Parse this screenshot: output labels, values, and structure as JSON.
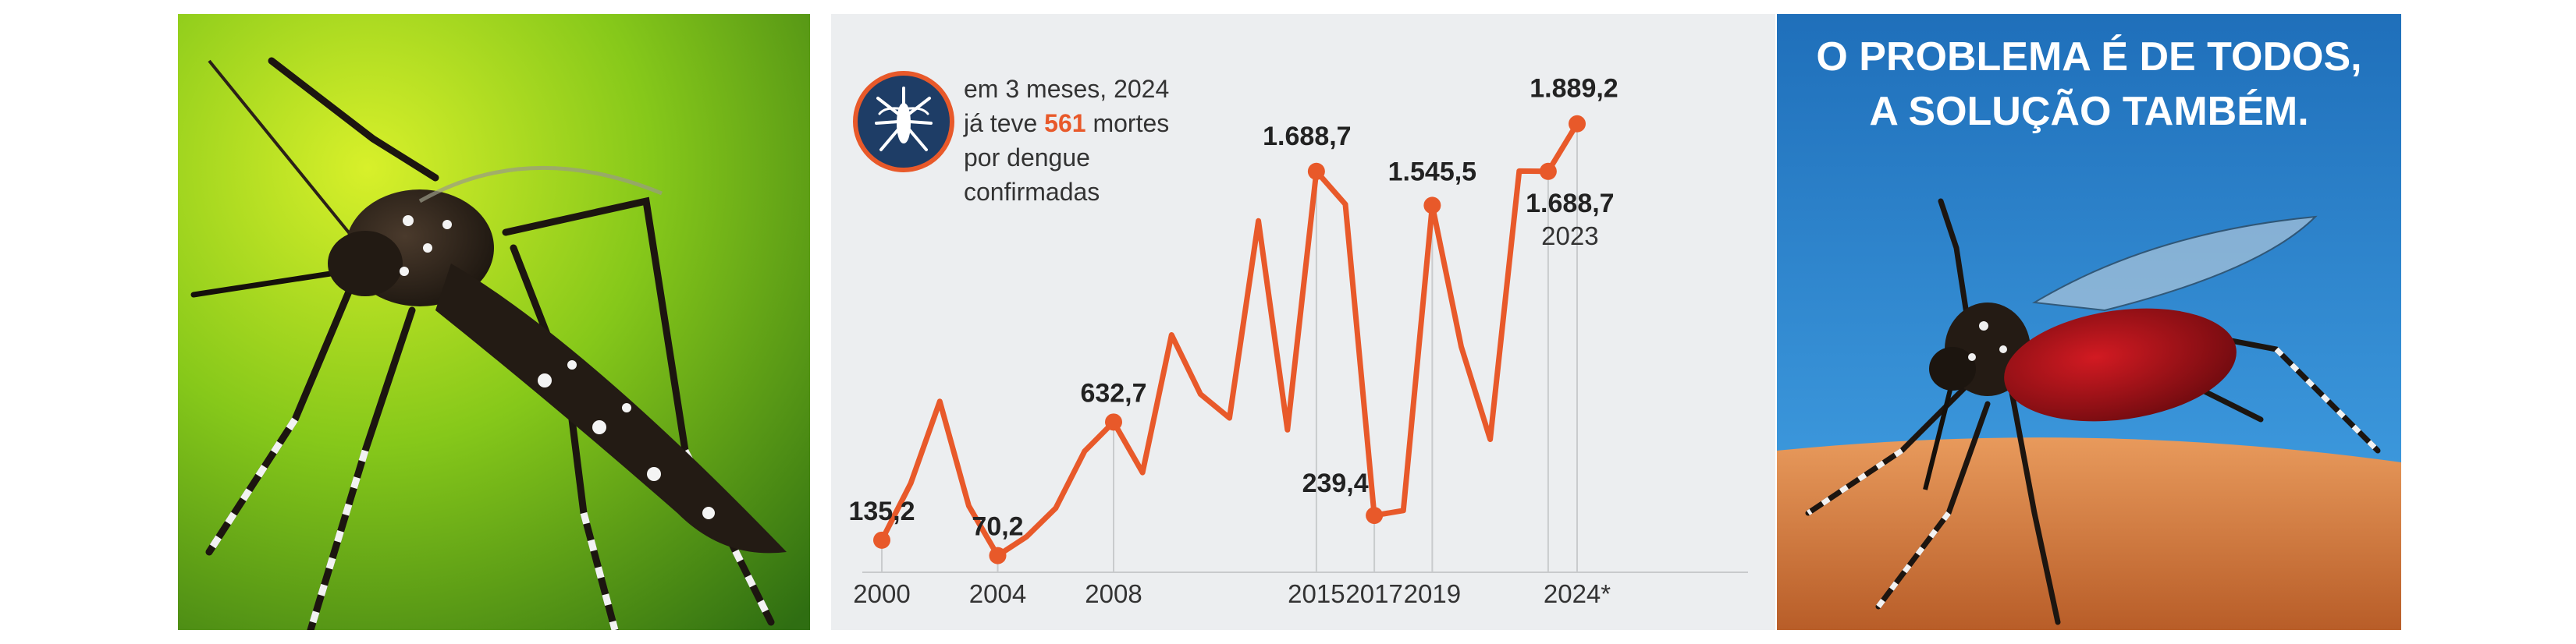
{
  "colors": {
    "line": "#e8592a",
    "panel_bg": "#eceef0",
    "icon_bg": "#1e3d66",
    "slogan_sky": "#2a7ec4"
  },
  "annotation": {
    "line1": "em 3 meses, 2024",
    "line2_prefix": "já teve ",
    "line2_highlight": "561",
    "line2_suffix": " mortes",
    "line3": "por dengue",
    "line4": "confirmadas",
    "icon": "mosquito-icon"
  },
  "slogan": {
    "line1": "O PROBLEMA É DE TODOS,",
    "line2": "A SOLUÇÃO TAMBÉM."
  },
  "chart_data": {
    "type": "line",
    "x": [
      2000,
      2001,
      2002,
      2003,
      2004,
      2005,
      2006,
      2007,
      2008,
      2009,
      2010,
      2011,
      2012,
      2013,
      2014,
      2015,
      2016,
      2017,
      2018,
      2019,
      2020,
      2021,
      2022,
      2023,
      2024
    ],
    "series": [
      {
        "values": [
          135.2,
          375,
          720,
          280,
          70.2,
          150,
          270,
          510,
          632.7,
          420,
          1000,
          750,
          650,
          1480,
          600,
          1688.7,
          1550,
          239.4,
          260,
          1545.5,
          950,
          560,
          1690,
          1688.7,
          1889.2
        ]
      }
    ],
    "x_ticks": [
      "2000",
      "2004",
      "2008",
      "2015",
      "2017",
      "2019",
      "2024*"
    ],
    "labels": [
      {
        "x": 2000,
        "text": "135,2"
      },
      {
        "x": 2004,
        "text": "70,2"
      },
      {
        "x": 2008,
        "text": "632,7"
      },
      {
        "x": 2015,
        "text": "1.688,7"
      },
      {
        "x": 2017,
        "text": "239,4"
      },
      {
        "x": 2019,
        "text": "1.545,5"
      },
      {
        "x": 2023,
        "text": "1.688,7",
        "sub": "2023"
      },
      {
        "x": 2024,
        "text": "1.889,2"
      }
    ],
    "highlighted_x": [
      2000,
      2004,
      2008,
      2015,
      2017,
      2019,
      2023,
      2024
    ],
    "ylim": [
      0,
      2000
    ],
    "grid": false,
    "legend": "none"
  }
}
